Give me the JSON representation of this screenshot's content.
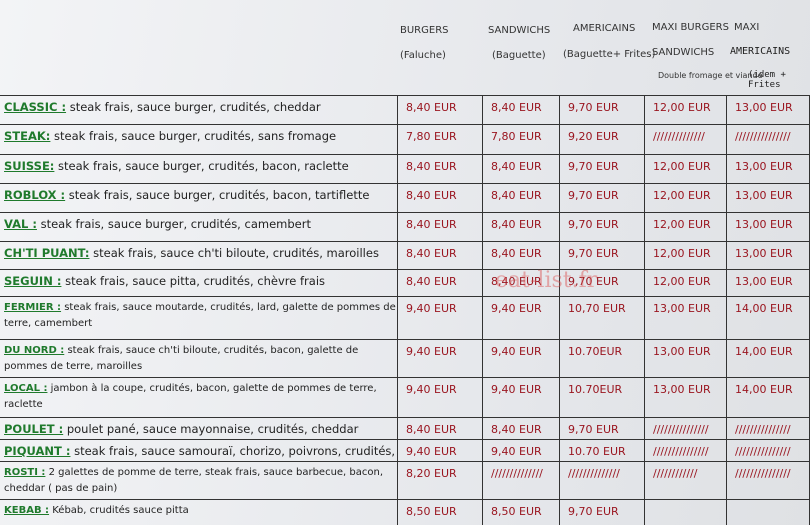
{
  "header": {
    "columns": [
      {
        "title": "BURGERS",
        "subtitle": "(Faluche)"
      },
      {
        "title": "SANDWICHS",
        "subtitle": "(Baguette)"
      },
      {
        "title": "AMERICAINS",
        "subtitle": "(Baguette+ Frites)"
      },
      {
        "title": "MAXI BURGERS",
        "subtitle": "SANDWICHS"
      },
      {
        "title": "MAXI",
        "subtitle": "AMERICAINS",
        "handnote": "(idem + Frites"
      }
    ],
    "note": "Double fromage et viande"
  },
  "watermark": "eat-list.fr",
  "table": {
    "rows": [
      {
        "name": "CLASSIC :",
        "desc": " steak frais, sauce burger, crudités, cheddar",
        "prices": [
          "8,40 EUR",
          "8,40 EUR",
          "9,70 EUR",
          "12,00 EUR",
          "13,00 EUR"
        ]
      },
      {
        "name": "STEAK:",
        "desc": " steak frais, sauce burger, crudités, sans fromage",
        "prices": [
          "7,80 EUR",
          "7,80 EUR",
          "9,20 EUR",
          "//////////////",
          "///////////////"
        ]
      },
      {
        "name": "SUISSE:",
        "desc": " steak frais, sauce burger, crudités, bacon, raclette",
        "prices": [
          "8,40 EUR",
          "8,40 EUR",
          "9,70 EUR",
          "12,00 EUR",
          "13,00 EUR"
        ]
      },
      {
        "name": "ROBLOX :",
        "desc": " steak frais, sauce burger, crudités, bacon, tartiflette",
        "prices": [
          "8,40 EUR",
          "8,40 EUR",
          "9,70 EUR",
          "12,00 EUR",
          "13,00 EUR"
        ]
      },
      {
        "name": "VAL :",
        "desc": " steak frais, sauce burger, crudités, camembert",
        "prices": [
          "8,40 EUR",
          "8,40 EUR",
          "9,70 EUR",
          "12,00 EUR",
          "13,00 EUR"
        ]
      },
      {
        "name": "CH'TI PUANT:",
        "desc": " steak frais, sauce ch'ti biloute, crudités, maroilles",
        "prices": [
          "8,40 EUR",
          "8,40 EUR",
          "9,70 EUR",
          "12,00 EUR",
          "13,00 EUR"
        ]
      },
      {
        "name": "SEGUIN :",
        "desc": " steak frais, sauce pitta, crudités, chèvre frais",
        "prices": [
          "8,40 EUR",
          "8,40 EUR",
          "9,70 EUR",
          "12,00 EUR",
          "13,00 EUR"
        ]
      },
      {
        "name": "FERMIER :",
        "desc": " steak frais, sauce moutarde, crudités, lard, galette de pommes de terre, camembert",
        "prices": [
          "9,40 EUR",
          "9,40 EUR",
          "10,70 EUR",
          "13,00 EUR",
          "14,00 EUR"
        ]
      },
      {
        "name": "DU NORD :",
        "desc": " steak frais, sauce ch'ti biloute, crudités, bacon, galette de pommes de terre, maroilles",
        "prices": [
          "9,40 EUR",
          "9,40 EUR",
          "10.70EUR",
          "13,00 EUR",
          "14,00 EUR"
        ]
      },
      {
        "name": "LOCAL :",
        "desc": " jambon à la coupe, crudités, bacon, galette de pommes de terre, raclette",
        "prices": [
          "9,40 EUR",
          "9,40 EUR",
          "10.70EUR",
          "13,00 EUR",
          "14,00 EUR"
        ]
      },
      {
        "name": "POULET :",
        "desc": " poulet pané, sauce mayonnaise, crudités, cheddar",
        "prices": [
          "8,40 EUR",
          "8,40 EUR",
          "9,70 EUR",
          "///////////////",
          "///////////////"
        ]
      },
      {
        "name": "PIQUANT :",
        "desc": " steak frais, sauce samouraï, chorizo, poivrons, crudités, cheddar",
        "prices": [
          "9,40 EUR",
          "9,40 EUR",
          "10.70 EUR",
          "///////////////",
          "///////////////"
        ]
      },
      {
        "name": "ROSTI :",
        "desc": " 2 galettes de pomme de terre, steak frais, sauce barbecue, bacon, cheddar ( pas de pain)",
        "prices": [
          "8,20 EUR",
          "//////////////",
          "//////////////",
          "////////////",
          "///////////////"
        ]
      },
      {
        "name": "KEBAB :",
        "desc": " Kébab, crudités sauce pitta",
        "prices": [
          "8,50 EUR",
          "8,50 EUR",
          "9,70 EUR"
        ]
      }
    ]
  }
}
